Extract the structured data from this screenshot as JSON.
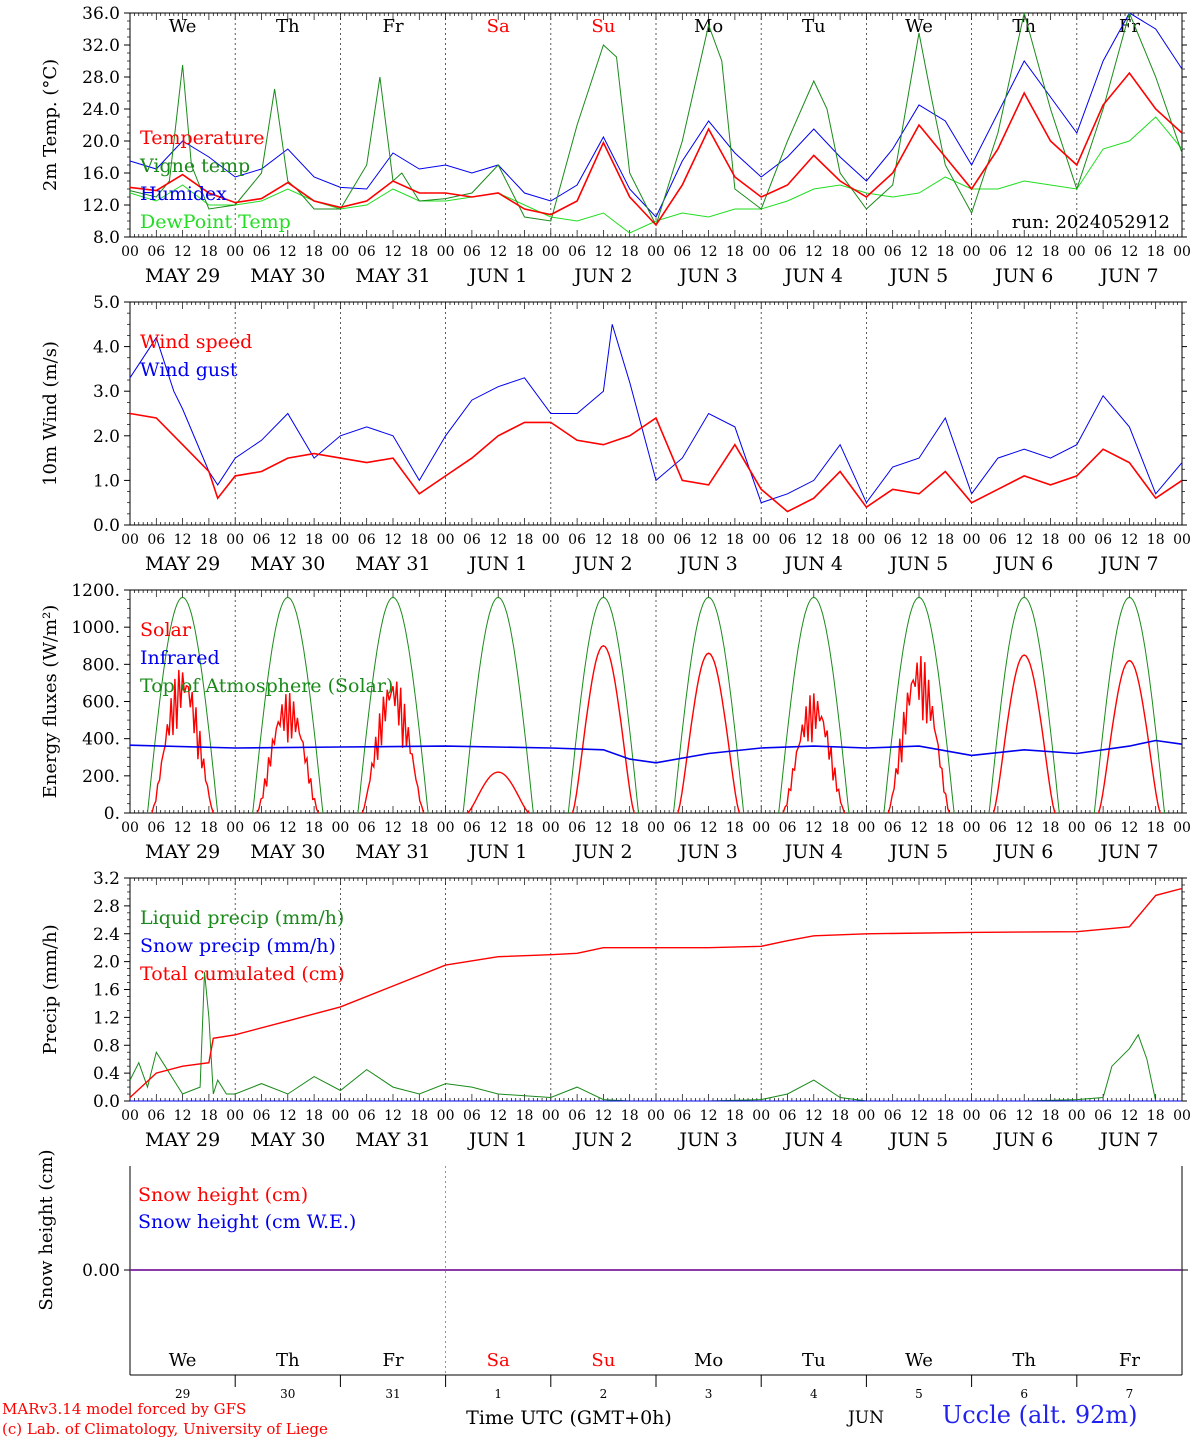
{
  "colors": {
    "red": "#ff0000",
    "green": "#1a8a1a",
    "blue": "#0000ee",
    "light_green": "#22dd22",
    "purple": "#7a1f9c",
    "axis": "#000000"
  },
  "day_names": [
    "We",
    "Th",
    "Fr",
    "Sa",
    "Su",
    "Mo",
    "Tu",
    "We",
    "Th",
    "Fr"
  ],
  "day_name_colors": [
    "#000000",
    "#000000",
    "#000000",
    "#ff0000",
    "#ff0000",
    "#000000",
    "#000000",
    "#000000",
    "#000000",
    "#000000"
  ],
  "date_labels": [
    "MAY 29",
    "MAY 30",
    "MAY 31",
    "JUN  1",
    "JUN  2",
    "JUN  3",
    "JUN  4",
    "JUN  5",
    "JUN  6",
    "JUN  7"
  ],
  "hour_labels": [
    "00",
    "06",
    "12",
    "18"
  ],
  "day_numbers": [
    "29",
    "30",
    "31",
    "1",
    "2",
    "3",
    "4",
    "5",
    "6",
    "7"
  ],
  "month_label": "JUN",
  "time_axis_label": "Time UTC (GMT+0h)",
  "run_label": "run: 2024052912",
  "credit_line1": "MARv3.14 model forced by GFS",
  "credit_line2": "(c) Lab. of Climatology, University of Liege",
  "station_label": "Uccle (alt. 92m)",
  "chart_data": [
    {
      "type": "line",
      "ylabel": "2m Temp. (°C)",
      "ylim": [
        8,
        36
      ],
      "yticks": [
        "8.0",
        "12.0",
        "16.0",
        "20.0",
        "24.0",
        "28.0",
        "32.0",
        "36.0"
      ],
      "x_unit": "hours since 2024-05-29 00 UTC",
      "series": [
        {
          "name": "Temperature",
          "color": "#ff0000",
          "width": 1.6,
          "x": [
            0,
            6,
            12,
            18,
            24,
            30,
            36,
            42,
            48,
            54,
            60,
            66,
            72,
            78,
            84,
            90,
            96,
            102,
            108,
            114,
            120,
            126,
            132,
            138,
            144,
            150,
            156,
            162,
            168,
            174,
            180,
            186,
            192,
            198,
            204,
            210,
            216,
            222,
            228,
            234,
            240
          ],
          "y": [
            14.2,
            13.8,
            15.8,
            13.5,
            12.3,
            12.8,
            14.8,
            12.5,
            11.7,
            12.5,
            15.0,
            13.5,
            13.5,
            13.0,
            13.5,
            11.5,
            10.8,
            12.5,
            19.8,
            13.0,
            9.5,
            14.5,
            21.5,
            15.5,
            13.0,
            14.5,
            18.2,
            15.0,
            13.0,
            16.0,
            22.0,
            18.0,
            14.0,
            19.0,
            26.0,
            20.0,
            17.0,
            24.5,
            28.5,
            24.0,
            21.0
          ]
        },
        {
          "name": "Vigne temp",
          "color": "#1a8a1a",
          "width": 1.0,
          "x": [
            0,
            6,
            9,
            12,
            14,
            18,
            24,
            30,
            33,
            36,
            38,
            42,
            48,
            54,
            57,
            60,
            62,
            66,
            72,
            78,
            84,
            90,
            96,
            102,
            108,
            111,
            114,
            120,
            126,
            132,
            135,
            138,
            144,
            150,
            156,
            159,
            162,
            168,
            174,
            180,
            183,
            186,
            192,
            198,
            204,
            210,
            216,
            222,
            228,
            234,
            240
          ],
          "y": [
            13.8,
            13.0,
            15.0,
            29.5,
            17.0,
            11.5,
            12.0,
            16.0,
            26.5,
            15.0,
            14.0,
            11.5,
            11.5,
            17.0,
            28.0,
            15.0,
            16.0,
            12.5,
            12.8,
            13.5,
            17.0,
            10.5,
            10.0,
            22.0,
            32.0,
            30.5,
            16.0,
            9.5,
            20.0,
            34.5,
            30.0,
            14.0,
            11.5,
            20.0,
            27.5,
            24.0,
            16.0,
            11.5,
            14.5,
            33.5,
            25.0,
            17.0,
            11.0,
            21.0,
            36.0,
            24.0,
            14.0,
            24.0,
            36.0,
            28.0,
            18.5
          ]
        },
        {
          "name": "Humidex",
          "color": "#0000ee",
          "width": 1.0,
          "x": [
            0,
            6,
            12,
            18,
            24,
            30,
            36,
            42,
            48,
            54,
            60,
            66,
            72,
            78,
            84,
            90,
            96,
            102,
            108,
            114,
            120,
            126,
            132,
            138,
            144,
            150,
            156,
            162,
            168,
            174,
            180,
            186,
            192,
            198,
            204,
            210,
            216,
            222,
            228,
            234,
            240
          ],
          "y": [
            17.5,
            16.5,
            20.0,
            18.0,
            15.5,
            16.5,
            19.0,
            15.5,
            14.2,
            14.0,
            18.5,
            16.5,
            17.0,
            16.0,
            17.0,
            13.5,
            12.5,
            14.5,
            20.5,
            14.0,
            10.5,
            17.5,
            22.5,
            18.5,
            15.5,
            18.0,
            21.5,
            18.0,
            15.0,
            19.0,
            24.5,
            22.5,
            17.0,
            23.5,
            30.0,
            25.5,
            21.0,
            30.0,
            36.0,
            34.0,
            29.0
          ]
        },
        {
          "name": "DewPoint Temp",
          "color": "#22dd22",
          "width": 1.0,
          "x": [
            0,
            6,
            12,
            18,
            24,
            30,
            36,
            42,
            48,
            54,
            60,
            66,
            72,
            78,
            84,
            90,
            96,
            102,
            108,
            114,
            120,
            126,
            132,
            138,
            144,
            150,
            156,
            162,
            168,
            174,
            180,
            186,
            192,
            198,
            204,
            210,
            216,
            222,
            228,
            234,
            240
          ],
          "y": [
            13.5,
            12.5,
            14.5,
            12.0,
            12.0,
            12.5,
            14.0,
            12.5,
            11.5,
            12.0,
            14.0,
            12.5,
            12.5,
            13.0,
            13.5,
            12.0,
            10.5,
            10.0,
            11.0,
            8.5,
            10.0,
            11.0,
            10.5,
            11.5,
            11.5,
            12.5,
            14.0,
            14.5,
            13.5,
            13.0,
            13.5,
            15.5,
            14.0,
            14.0,
            15.0,
            14.5,
            14.0,
            19.0,
            20.0,
            23.0,
            19.0
          ]
        }
      ]
    },
    {
      "type": "line",
      "ylabel": "10m Wind (m/s)",
      "ylim": [
        0,
        5
      ],
      "yticks": [
        "0.0",
        "1.0",
        "2.0",
        "3.0",
        "4.0",
        "5.0"
      ],
      "series": [
        {
          "name": "Wind speed",
          "color": "#ff0000",
          "width": 1.6,
          "x": [
            0,
            6,
            12,
            18,
            20,
            24,
            30,
            36,
            42,
            48,
            54,
            60,
            66,
            72,
            78,
            84,
            90,
            96,
            102,
            108,
            114,
            120,
            126,
            132,
            138,
            144,
            150,
            156,
            162,
            168,
            174,
            180,
            186,
            192,
            198,
            204,
            210,
            216,
            222,
            228,
            234,
            240
          ],
          "y": [
            2.5,
            2.4,
            1.8,
            1.2,
            0.6,
            1.1,
            1.2,
            1.5,
            1.6,
            1.5,
            1.4,
            1.5,
            0.7,
            1.1,
            1.5,
            2.0,
            2.3,
            2.3,
            1.9,
            1.8,
            2.0,
            2.4,
            1.0,
            0.9,
            1.8,
            0.8,
            0.3,
            0.6,
            1.2,
            0.4,
            0.8,
            0.7,
            1.2,
            0.5,
            0.8,
            1.1,
            0.9,
            1.1,
            1.7,
            1.4,
            0.6,
            1.0
          ]
        },
        {
          "name": "Wind gust",
          "color": "#0000ee",
          "width": 1.0,
          "x": [
            0,
            6,
            10,
            12,
            18,
            20,
            24,
            30,
            36,
            42,
            48,
            54,
            60,
            66,
            72,
            78,
            84,
            90,
            96,
            102,
            108,
            110,
            114,
            120,
            126,
            132,
            138,
            144,
            150,
            156,
            162,
            168,
            174,
            180,
            186,
            192,
            198,
            204,
            210,
            216,
            222,
            228,
            234,
            240
          ],
          "y": [
            3.3,
            4.2,
            3.0,
            2.6,
            1.2,
            0.9,
            1.5,
            1.9,
            2.5,
            1.5,
            2.0,
            2.2,
            2.0,
            1.0,
            2.0,
            2.8,
            3.1,
            3.3,
            2.5,
            2.5,
            3.0,
            4.5,
            3.2,
            1.0,
            1.5,
            2.5,
            2.2,
            0.5,
            0.7,
            1.0,
            1.8,
            0.5,
            1.3,
            1.5,
            2.4,
            0.7,
            1.5,
            1.7,
            1.5,
            1.8,
            2.9,
            2.2,
            0.7,
            1.4
          ]
        }
      ]
    },
    {
      "type": "line",
      "ylabel": "Energy fluxes (W/m²)",
      "ylim": [
        0,
        1200
      ],
      "yticks": [
        "0.",
        "200.",
        "400.",
        "600.",
        "800.",
        "1000.",
        "1200."
      ],
      "series": [
        {
          "name": "Solar",
          "color": "#ff0000",
          "width": 1.4,
          "day_peaks": [
            800,
            650,
            750,
            220,
            900,
            860,
            650,
            860,
            850,
            820
          ]
        },
        {
          "name": "Infrared",
          "color": "#0000ee",
          "width": 1.6,
          "x": [
            0,
            24,
            48,
            72,
            96,
            108,
            114,
            120,
            132,
            144,
            156,
            168,
            180,
            192,
            204,
            216,
            228,
            234,
            240
          ],
          "y": [
            365,
            350,
            355,
            360,
            350,
            340,
            290,
            270,
            320,
            350,
            360,
            350,
            360,
            310,
            340,
            320,
            360,
            390,
            370
          ]
        },
        {
          "name": "Top of Atmosphere (Solar)",
          "color": "#1a8a1a",
          "width": 1.0,
          "peak": 1160
        }
      ]
    },
    {
      "type": "line",
      "ylabel": "Precip (mm/h)",
      "ylim": [
        0,
        3.2
      ],
      "yticks": [
        "0.0",
        "0.4",
        "0.8",
        "1.2",
        "1.6",
        "2.0",
        "2.4",
        "2.8",
        "3.2"
      ],
      "series": [
        {
          "name": "Liquid precip (mm/h)",
          "color": "#1a8a1a",
          "width": 1.0,
          "x": [
            0,
            2,
            4,
            6,
            8,
            10,
            12,
            14,
            16,
            17,
            18,
            19,
            20,
            22,
            24,
            30,
            36,
            42,
            48,
            54,
            60,
            66,
            72,
            78,
            84,
            96,
            102,
            108,
            114,
            120,
            132,
            144,
            150,
            156,
            162,
            168,
            180,
            192,
            204,
            216,
            222,
            224,
            228,
            230,
            232,
            234,
            240
          ],
          "y": [
            0.3,
            0.55,
            0.2,
            0.7,
            0.5,
            0.3,
            0.1,
            0.15,
            0.2,
            1.85,
            1.2,
            0.1,
            0.3,
            0.1,
            0.1,
            0.25,
            0.1,
            0.35,
            0.15,
            0.45,
            0.2,
            0.1,
            0.25,
            0.2,
            0.1,
            0.05,
            0.2,
            0.02,
            0.0,
            0.0,
            0.0,
            0.02,
            0.1,
            0.3,
            0.05,
            0.0,
            0.0,
            0.0,
            0.0,
            0.02,
            0.05,
            0.5,
            0.75,
            0.95,
            0.6,
            0.0,
            0.0
          ]
        },
        {
          "name": "Snow precip (mm/h)",
          "color": "#0000ee",
          "width": 1.0,
          "x": [
            0,
            240
          ],
          "y": [
            0,
            0
          ]
        },
        {
          "name": "Total cumulated (cm)",
          "color": "#ff0000",
          "width": 1.4,
          "x": [
            0,
            6,
            12,
            18,
            19,
            24,
            36,
            48,
            60,
            72,
            84,
            96,
            102,
            108,
            132,
            144,
            150,
            156,
            168,
            192,
            216,
            228,
            234,
            240
          ],
          "y": [
            0.05,
            0.4,
            0.5,
            0.55,
            0.9,
            0.95,
            1.15,
            1.35,
            1.65,
            1.95,
            2.07,
            2.1,
            2.12,
            2.2,
            2.2,
            2.22,
            2.3,
            2.37,
            2.4,
            2.42,
            2.43,
            2.5,
            2.95,
            3.05
          ]
        }
      ]
    },
    {
      "type": "line",
      "ylabel": "Snow height (cm)",
      "yticks": [
        "0.00"
      ],
      "series": [
        {
          "name": "Snow height (cm)",
          "color": "#ff0000",
          "width": 1.0,
          "x": [
            0,
            240
          ],
          "y": [
            0,
            0
          ]
        },
        {
          "name": "Snow height (cm W.E.)",
          "color": "#0000ee",
          "width": 1.0,
          "x": [
            0,
            240
          ],
          "y": [
            0,
            0
          ]
        }
      ]
    }
  ]
}
